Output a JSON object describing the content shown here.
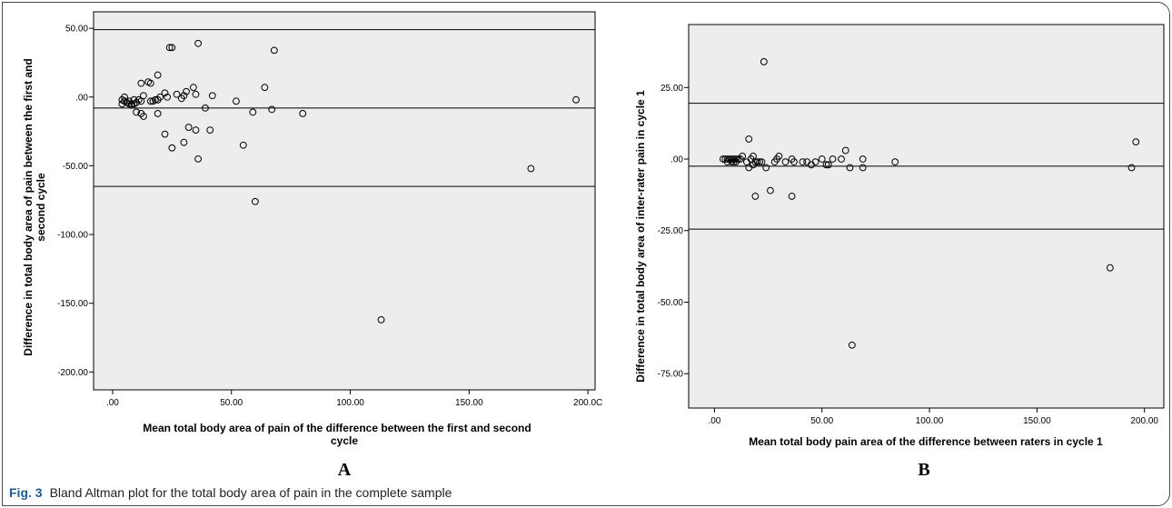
{
  "caption": {
    "label": "Fig. 3",
    "text": "Bland Altman plot for the total body area of pain in the complete sample"
  },
  "colors": {
    "plot_bg": "#ededed",
    "frame": "#4a4a4a",
    "caption_label": "#1a5d9a"
  },
  "chart_data": [
    {
      "type": "scatter",
      "panel": "A",
      "xlabel": "Mean total body area of pain of the difference between the first and second cycle",
      "xlabel_lines": [
        "Mean total body area of pain of the difference between the first and second",
        "cycle"
      ],
      "ylabel": "Difference in total body area of pain between the first and second cycle",
      "ylabel_lines": [
        "Difference in total body area of pain between the first and",
        "second cycle"
      ],
      "xticks": [
        0,
        50,
        100,
        150,
        200
      ],
      "xtick_labels": [
        ".00",
        "50.00",
        "100.00",
        "150.00",
        "200.0C"
      ],
      "yticks": [
        50,
        0,
        -50,
        -100,
        -150,
        -200
      ],
      "ytick_labels": [
        "50.00",
        ".00",
        "-50.00",
        "-100.00",
        "-150.00",
        "-200.00"
      ],
      "xlim": [
        -8,
        203
      ],
      "ylim": [
        -213,
        62
      ],
      "hlines": [
        49,
        -8,
        -65
      ],
      "grid": false,
      "points": [
        [
          4,
          -5
        ],
        [
          4,
          -2
        ],
        [
          5,
          0
        ],
        [
          5,
          -3
        ],
        [
          6,
          -4
        ],
        [
          7,
          -5
        ],
        [
          7,
          -3
        ],
        [
          8,
          -5
        ],
        [
          8,
          -6
        ],
        [
          9,
          -5
        ],
        [
          9,
          -2
        ],
        [
          10,
          -4
        ],
        [
          10,
          -11
        ],
        [
          11,
          -2
        ],
        [
          12,
          -12
        ],
        [
          12,
          -3
        ],
        [
          12,
          10
        ],
        [
          13,
          -14
        ],
        [
          13,
          1
        ],
        [
          15,
          11
        ],
        [
          16,
          -3
        ],
        [
          16,
          10
        ],
        [
          17,
          -3
        ],
        [
          18,
          -2
        ],
        [
          19,
          -2
        ],
        [
          19,
          -12
        ],
        [
          19,
          16
        ],
        [
          20,
          0
        ],
        [
          22,
          3
        ],
        [
          22,
          -27
        ],
        [
          23,
          0
        ],
        [
          24,
          36
        ],
        [
          25,
          36
        ],
        [
          25,
          -37
        ],
        [
          27,
          2
        ],
        [
          29,
          -1
        ],
        [
          30,
          -33
        ],
        [
          30,
          1
        ],
        [
          31,
          4
        ],
        [
          32,
          -22
        ],
        [
          34,
          7
        ],
        [
          35,
          -24
        ],
        [
          35,
          2
        ],
        [
          36,
          39
        ],
        [
          36,
          -45
        ],
        [
          39,
          -8
        ],
        [
          41,
          -24
        ],
        [
          42,
          1
        ],
        [
          52,
          -3
        ],
        [
          55,
          -35
        ],
        [
          59,
          -11
        ],
        [
          60,
          -76
        ],
        [
          64,
          7
        ],
        [
          67,
          -9
        ],
        [
          68,
          34
        ],
        [
          80,
          -12
        ],
        [
          113,
          -162
        ],
        [
          176,
          -52
        ],
        [
          195,
          -2
        ]
      ]
    },
    {
      "type": "scatter",
      "panel": "B",
      "xlabel": "Mean total body pain area of the difference between raters in cycle 1",
      "xlabel_lines": [
        "Mean total body pain area of the difference between raters in cycle 1"
      ],
      "ylabel": "Difference in total body area of inter-rater pain in cycle 1",
      "ylabel_lines": [
        "Difference in total body area of inter-rater pain in cycle 1"
      ],
      "xticks": [
        0,
        50,
        100,
        150,
        200
      ],
      "xtick_labels": [
        ".00",
        "50.00",
        "100.00",
        "150.00",
        "200.00"
      ],
      "yticks": [
        25,
        0,
        -25,
        -50,
        -75
      ],
      "ytick_labels": [
        "25.00",
        ".00",
        "-25.00",
        "-50.00",
        "-75.00"
      ],
      "xlim": [
        -12,
        209
      ],
      "ylim": [
        -87,
        47
      ],
      "hlines": [
        19.5,
        -2.5,
        -24.5
      ],
      "grid": false,
      "points": [
        [
          4,
          0
        ],
        [
          5,
          0
        ],
        [
          6,
          -1
        ],
        [
          6,
          0
        ],
        [
          7,
          0
        ],
        [
          8,
          -1
        ],
        [
          8,
          0
        ],
        [
          9,
          -1
        ],
        [
          9,
          0
        ],
        [
          10,
          -1
        ],
        [
          10,
          0
        ],
        [
          11,
          0
        ],
        [
          12,
          0
        ],
        [
          13,
          1
        ],
        [
          15,
          -1
        ],
        [
          16,
          -3
        ],
        [
          16,
          7
        ],
        [
          17,
          0
        ],
        [
          18,
          -2
        ],
        [
          18,
          1
        ],
        [
          19,
          -1
        ],
        [
          19,
          -13
        ],
        [
          20,
          -1
        ],
        [
          21,
          -1
        ],
        [
          22,
          -1
        ],
        [
          23,
          34
        ],
        [
          24,
          -3
        ],
        [
          26,
          -11
        ],
        [
          28,
          -1
        ],
        [
          29,
          0
        ],
        [
          30,
          1
        ],
        [
          33,
          -1
        ],
        [
          36,
          0
        ],
        [
          36,
          -13
        ],
        [
          37,
          -1
        ],
        [
          41,
          -1
        ],
        [
          43,
          -1
        ],
        [
          45,
          -2
        ],
        [
          47,
          -1
        ],
        [
          50,
          0
        ],
        [
          52,
          -2
        ],
        [
          53,
          -2
        ],
        [
          55,
          0
        ],
        [
          59,
          0
        ],
        [
          61,
          3
        ],
        [
          63,
          -3
        ],
        [
          69,
          0
        ],
        [
          69,
          -3
        ],
        [
          84,
          -1
        ],
        [
          184,
          -38
        ],
        [
          194,
          -3
        ],
        [
          196,
          6
        ],
        [
          64,
          -65
        ]
      ]
    }
  ]
}
